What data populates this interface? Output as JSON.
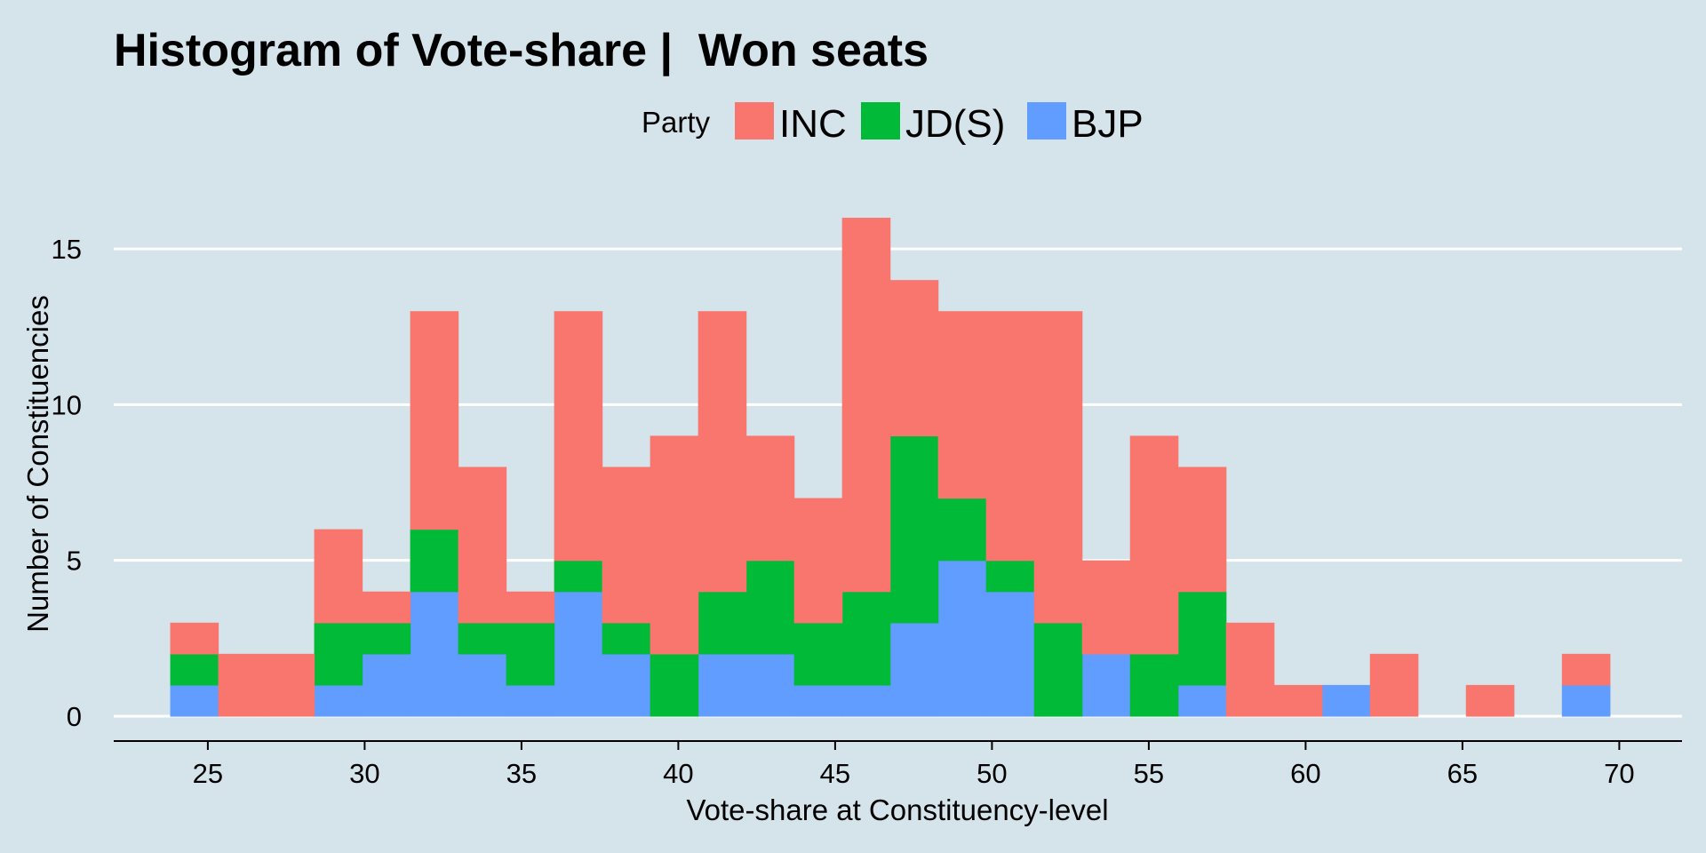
{
  "chart_data": {
    "type": "bar",
    "title": "Histogram of Vote-share |  Won seats",
    "xlabel": "Vote-share at Constituency-level",
    "ylabel": "Number of Constituencies",
    "legend": {
      "title": "Party",
      "position": "top",
      "entries": [
        "INC",
        "JD(S)",
        "BJP"
      ]
    },
    "colors": {
      "INC": "#f8766d",
      "JD(S)": "#00ba38",
      "BJP": "#619cff",
      "background": "#d5e4eb",
      "gridline": "#ffffff",
      "axis": "#000000"
    },
    "xlim": [
      22,
      72
    ],
    "ylim": [
      -0.8,
      17
    ],
    "xticks": [
      25,
      30,
      35,
      40,
      45,
      50,
      55,
      60,
      65,
      70
    ],
    "yticks": [
      0,
      5,
      10,
      15
    ],
    "grid": "horizontal",
    "bins": {
      "starts": [
        23.8,
        25.33,
        26.86,
        28.39,
        29.92,
        31.45,
        32.98,
        34.51,
        36.04,
        37.57,
        39.1,
        40.63,
        42.16,
        43.69,
        45.22,
        46.75,
        48.28,
        49.81,
        51.34,
        52.87,
        54.4,
        55.93,
        57.46,
        58.99,
        60.52,
        62.05,
        63.58,
        65.11,
        66.64,
        68.17
      ],
      "width": 1.53
    },
    "series": [
      {
        "name": "BJP",
        "values": [
          1,
          0,
          0,
          1,
          2,
          4,
          2,
          1,
          4,
          2,
          0,
          2,
          2,
          1,
          1,
          3,
          5,
          4,
          0,
          2,
          0,
          1,
          0,
          0,
          1,
          0,
          0,
          0,
          0,
          1
        ]
      },
      {
        "name": "JD(S)",
        "values": [
          1,
          0,
          0,
          2,
          1,
          2,
          1,
          2,
          1,
          1,
          2,
          2,
          3,
          2,
          3,
          6,
          2,
          1,
          3,
          0,
          2,
          3,
          0,
          0,
          0,
          0,
          0,
          0,
          0,
          0
        ]
      },
      {
        "name": "INC",
        "values": [
          1,
          2,
          2,
          3,
          1,
          7,
          5,
          1,
          8,
          5,
          7,
          9,
          4,
          4,
          12,
          5,
          6,
          8,
          10,
          3,
          7,
          4,
          3,
          1,
          0,
          2,
          0,
          1,
          0,
          1
        ]
      }
    ]
  }
}
